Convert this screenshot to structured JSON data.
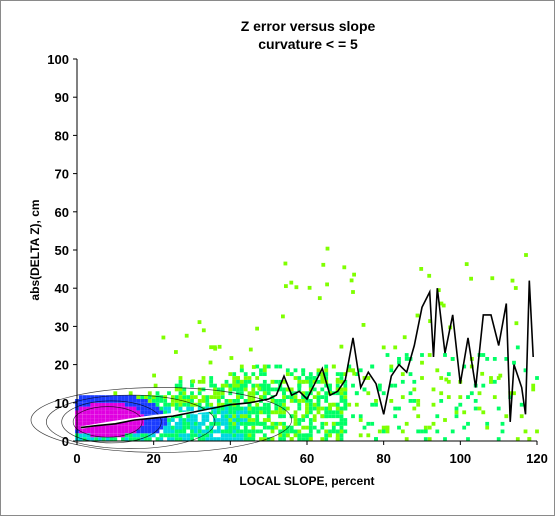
{
  "chart_data": {
    "type": "heatmap",
    "title": "Z error versus slope",
    "subtitle": "curvature < = 5",
    "xlabel": "LOCAL SLOPE, percent",
    "ylabel": "abs(DELTA Z), cm",
    "xlim": [
      0,
      120
    ],
    "ylim": [
      0,
      100
    ],
    "x_ticks": [
      "0",
      "20",
      "40",
      "60",
      "80",
      "100",
      "120"
    ],
    "y_ticks": [
      "0",
      "10",
      "20",
      "30",
      "40",
      "50",
      "60",
      "70",
      "80",
      "90",
      "100"
    ],
    "grid": false,
    "legend": "none",
    "colors": {
      "density_low": "#7fff00",
      "density_mid_low": "#00ff66",
      "density_mid": "#00d8e0",
      "density_high": "#1a3cff",
      "density_peak": "#e000e0",
      "median_line": "#000000",
      "fit_line": "#ffffff"
    },
    "median_line": {
      "x": [
        1,
        5,
        10,
        15,
        20,
        25,
        30,
        35,
        40,
        45,
        50,
        52,
        54,
        56,
        58,
        60,
        62,
        64,
        66,
        68,
        70,
        72,
        74,
        76,
        78,
        80,
        82,
        84,
        86,
        88,
        90,
        92,
        93,
        94,
        96,
        98,
        100,
        102,
        104,
        106,
        108,
        110,
        112,
        113,
        114,
        116,
        117,
        118,
        119
      ],
      "y": [
        3.5,
        4,
        4.5,
        5.5,
        6,
        6.5,
        7.5,
        8.5,
        9.5,
        10,
        11,
        12,
        17,
        12,
        13,
        11,
        15,
        19,
        12,
        13,
        16,
        27,
        14,
        18,
        15,
        7,
        17,
        20,
        18,
        25,
        35,
        39,
        22,
        40,
        23,
        33,
        15,
        27,
        14,
        33,
        33,
        25,
        36,
        5,
        20,
        14,
        7,
        42,
        22
      ]
    },
    "fit_line": {
      "x": [
        1,
        10,
        20,
        30,
        35
      ],
      "y": [
        3.5,
        5,
        6.5,
        7.5,
        8
      ]
    }
  }
}
